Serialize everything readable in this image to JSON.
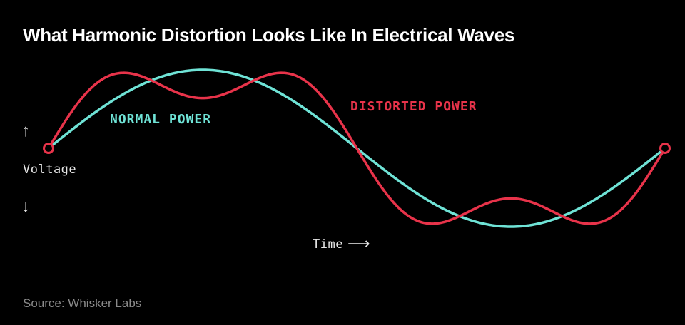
{
  "chart_data": {
    "type": "line",
    "title": "What Harmonic Distortion Looks Like In Electrical Waves",
    "source": "Source: Whisker Labs",
    "xlabel": "Time",
    "ylabel": "Voltage",
    "x_arrow": "⟶",
    "y_arrow_up": "↑",
    "y_arrow_down": "↓",
    "grid": false,
    "legend": "inline-labels",
    "xlim": [
      0,
      1
    ],
    "ylim": [
      -1,
      1
    ],
    "series": [
      {
        "name": "NORMAL POWER",
        "color": "#6fe3d6",
        "harmonics": [
          {
            "order": 1,
            "amplitude": 1.0
          }
        ]
      },
      {
        "name": "DISTORTED POWER",
        "color": "#e8334a",
        "harmonics": [
          {
            "order": 1,
            "amplitude": 1.0
          },
          {
            "order": 3,
            "amplitude": 0.36
          }
        ]
      }
    ],
    "endpoint_markers": [
      {
        "x": 0,
        "y": 0
      },
      {
        "x": 1,
        "y": 0
      }
    ]
  }
}
